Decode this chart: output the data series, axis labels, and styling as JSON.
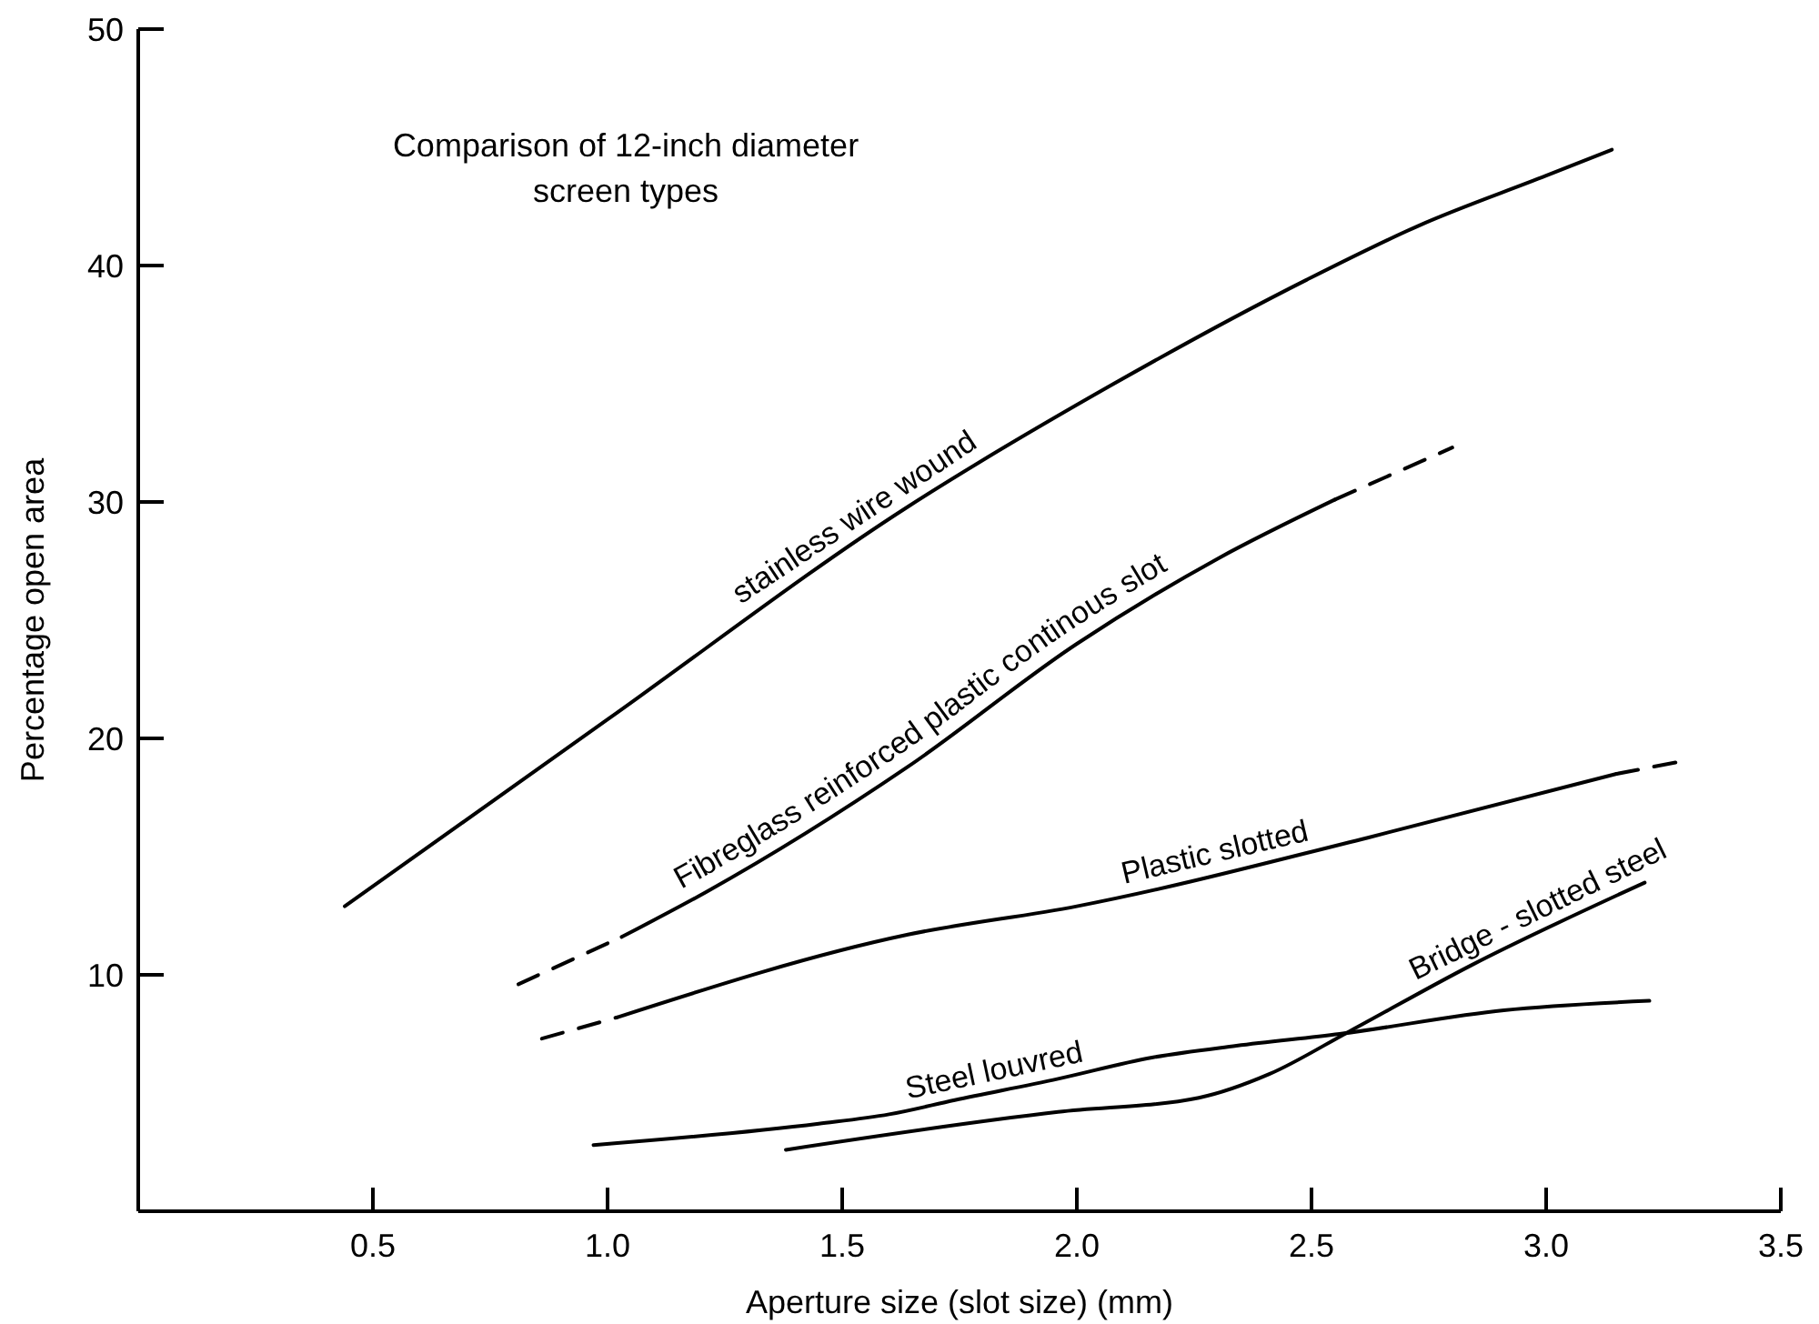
{
  "chart_data": {
    "type": "line",
    "title": "Comparison of 12-inch diameter screen types",
    "xlabel": "Aperture size (slot size) (mm)",
    "ylabel": "Percentage open area",
    "xlim": [
      0,
      3.5
    ],
    "ylim": [
      0,
      50
    ],
    "xticks": [
      {
        "value": 0.5,
        "label": "0.5"
      },
      {
        "value": 1,
        "label": "1.0"
      },
      {
        "value": 1.5,
        "label": "1.5"
      },
      {
        "value": 2,
        "label": "2.0"
      },
      {
        "value": 2.5,
        "label": "2.5"
      },
      {
        "value": 3,
        "label": "3.0"
      },
      {
        "value": 3.5,
        "label": "3.5"
      }
    ],
    "yticks": [
      10,
      20,
      30,
      40,
      50
    ],
    "grid": false,
    "legend": false,
    "marker": "none",
    "series": [
      {
        "name": "stainless wire wound",
        "color": "#000000",
        "line_style": "solid",
        "x": [
          0.44,
          1.0,
          1.64,
          2.07,
          2.49,
          2.73,
          3.0,
          3.14
        ],
        "values": [
          12.9,
          20.8,
          29.8,
          34.9,
          39.4,
          41.7,
          43.8,
          44.9
        ]
      },
      {
        "name": "Fibreglass reinforced plastic continous slot",
        "color": "#000000",
        "line_style": "solid",
        "x": [
          1.03,
          1.21,
          1.64,
          2.0,
          2.3,
          2.55
        ],
        "values": [
          11.6,
          13.5,
          18.8,
          24.0,
          27.6,
          30.1
        ]
      },
      {
        "color": "#000000",
        "line_style": "dashed",
        "x": [
          0.81,
          1.03
        ],
        "values": [
          9.6,
          11.6
        ]
      },
      {
        "color": "#000000",
        "line_style": "dashed",
        "x": [
          2.55,
          2.8
        ],
        "values": [
          30.1,
          32.3
        ]
      },
      {
        "name": "Plastic slotted",
        "color": "#000000",
        "line_style": "solid",
        "x": [
          1.02,
          1.64,
          2.0,
          2.62,
          3.15
        ],
        "values": [
          8.2,
          11.7,
          12.9,
          15.8,
          18.5
        ]
      },
      {
        "color": "#000000",
        "line_style": "dashed",
        "x": [
          0.86,
          1.02
        ],
        "values": [
          7.3,
          8.2
        ]
      },
      {
        "color": "#000000",
        "line_style": "dashed",
        "x": [
          3.15,
          3.28
        ],
        "values": [
          18.5,
          19.0
        ]
      },
      {
        "name": "Steel louvred",
        "color": "#000000",
        "line_style": "solid",
        "x": [
          0.97,
          1.45,
          1.6,
          1.74,
          1.96,
          2.16,
          2.34,
          2.56,
          2.91,
          3.22
        ],
        "values": [
          2.8,
          3.7,
          4.1,
          4.7,
          5.6,
          6.5,
          7.0,
          7.5,
          8.5,
          8.9
        ]
      },
      {
        "name": "Bridge - slotted steel",
        "color": "#000000",
        "line_style": "solid",
        "x": [
          1.38,
          1.96,
          2.26,
          2.41,
          2.58,
          2.84,
          3.21
        ],
        "values": [
          2.6,
          4.2,
          4.8,
          5.8,
          7.6,
          10.4,
          13.9
        ]
      }
    ]
  }
}
